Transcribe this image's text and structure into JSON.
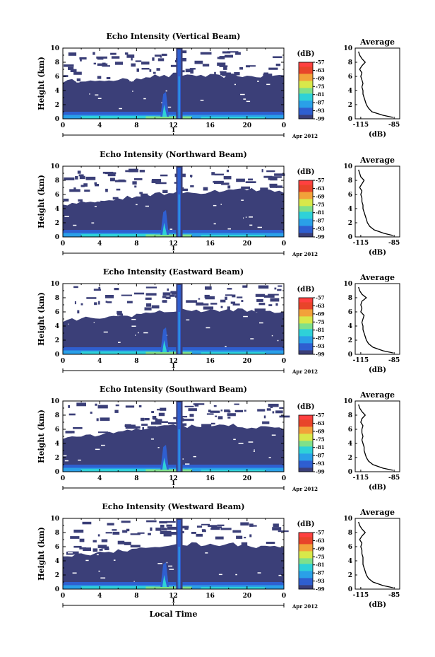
{
  "colors": {
    "background": "#ffffff",
    "no_echo": "#3b3f78",
    "colormap": [
      "#3b3f78",
      "#2f5fd0",
      "#2aa0e8",
      "#2ed1d8",
      "#7fe08a",
      "#d8e84a",
      "#f2a23a",
      "#e8452a",
      "#ff4040"
    ]
  },
  "chart_data": [
    {
      "type": "heatmap",
      "title": "Echo Intensity (Vertical Beam)",
      "ylabel": "Height (km)",
      "xlabel": "",
      "x_ticks": [
        "0",
        "4",
        "8",
        "12",
        "16",
        "20",
        "0"
      ],
      "y_ticks": [
        "0",
        "2",
        "4",
        "6",
        "8",
        "10"
      ],
      "xlim": [
        0,
        24
      ],
      "ylim": [
        0,
        10
      ],
      "date_tick": "1",
      "date_label": "Apr 2012",
      "colorbar": {
        "unit": "(dB)",
        "ticks": [
          "-57",
          "-63",
          "-69",
          "-75",
          "-81",
          "-87",
          "-93",
          "-99"
        ],
        "range": [
          -99,
          -57
        ]
      },
      "echo_top_km": [
        5.3,
        5.4,
        5.5,
        5.3,
        5.2,
        5.5,
        5.6,
        5.4,
        5.8,
        6.0,
        6.1,
        6.0,
        6.3,
        6.2,
        6.2,
        6.0,
        6.1,
        6.0,
        6.2,
        6.1,
        6.0,
        6.0,
        6.1,
        6.1
      ],
      "average": {
        "title": "Average",
        "xlabel": "(dB)",
        "x_ticks": [
          "-115",
          "-85"
        ],
        "xlim": [
          -120,
          -80
        ],
        "y_ticks": [
          "0",
          "2",
          "4",
          "6",
          "8",
          "10"
        ],
        "height_km": [
          0.2,
          0.5,
          1,
          1.5,
          2,
          2.5,
          3,
          3.5,
          4,
          4.5,
          5,
          5.5,
          6,
          6.5,
          7,
          7.5,
          8,
          8.5,
          9,
          9.5
        ],
        "db": [
          -86,
          -95,
          -105,
          -108,
          -110,
          -111,
          -112,
          -113,
          -113,
          -114,
          -113,
          -114,
          -115,
          -114,
          -116,
          -114,
          -111,
          -114,
          -116,
          -117
        ]
      }
    },
    {
      "type": "heatmap",
      "title": "Echo Intensity (Northward Beam)",
      "ylabel": "Height (km)",
      "xlabel": "",
      "x_ticks": [
        "0",
        "4",
        "8",
        "12",
        "16",
        "20",
        "0"
      ],
      "y_ticks": [
        "0",
        "2",
        "4",
        "6",
        "8",
        "10"
      ],
      "xlim": [
        0,
        24
      ],
      "ylim": [
        0,
        10
      ],
      "date_tick": "1",
      "date_label": "Apr 2012",
      "colorbar": {
        "unit": "(dB)",
        "ticks": [
          "-57",
          "-63",
          "-69",
          "-75",
          "-81",
          "-87",
          "-93",
          "-99"
        ],
        "range": [
          -99,
          -57
        ]
      },
      "echo_top_km": [
        4.6,
        4.8,
        5.0,
        5.1,
        5.0,
        5.3,
        5.4,
        5.6,
        5.8,
        6.0,
        6.2,
        6.1,
        6.3,
        6.4,
        6.3,
        6.2,
        6.4,
        6.3,
        6.6,
        6.8,
        6.7,
        6.4,
        6.6,
        6.3
      ],
      "average": {
        "title": "Average",
        "xlabel": "(dB)",
        "x_ticks": [
          "-115",
          "-85"
        ],
        "xlim": [
          -120,
          -80
        ],
        "y_ticks": [
          "0",
          "2",
          "4",
          "6",
          "8",
          "10"
        ],
        "height_km": [
          0.2,
          0.5,
          1,
          1.5,
          2,
          2.5,
          3,
          3.5,
          4,
          4.5,
          5,
          5.5,
          6,
          6.5,
          7,
          7.5,
          8,
          8.5,
          9,
          9.5
        ],
        "db": [
          -86,
          -94,
          -103,
          -107,
          -109,
          -110,
          -111,
          -112,
          -113,
          -113,
          -114,
          -114,
          -115,
          -114,
          -116,
          -114,
          -112,
          -115,
          -116,
          -117
        ]
      }
    },
    {
      "type": "heatmap",
      "title": "Echo Intensity (Eastward Beam)",
      "ylabel": "Height (km)",
      "xlabel": "",
      "x_ticks": [
        "0",
        "4",
        "8",
        "12",
        "16",
        "20",
        "0"
      ],
      "y_ticks": [
        "0",
        "2",
        "4",
        "6",
        "8",
        "10"
      ],
      "xlim": [
        0,
        24
      ],
      "ylim": [
        0,
        10
      ],
      "date_tick": "1",
      "date_label": "Apr 2012",
      "colorbar": {
        "unit": "(dB)",
        "ticks": [
          "-57",
          "-63",
          "-69",
          "-75",
          "-81",
          "-87",
          "-93",
          "-99"
        ],
        "range": [
          -99,
          -57
        ]
      },
      "echo_top_km": [
        4.7,
        4.9,
        5.1,
        5.0,
        5.2,
        5.3,
        5.4,
        5.5,
        5.7,
        5.8,
        6.0,
        6.1,
        6.1,
        6.2,
        6.3,
        6.1,
        6.2,
        6.1,
        6.3,
        6.3,
        6.1,
        6.0,
        6.2,
        6.0
      ],
      "average": {
        "title": "Average",
        "xlabel": "(dB)",
        "x_ticks": [
          "-115",
          "-85"
        ],
        "xlim": [
          -120,
          -80
        ],
        "y_ticks": [
          "0",
          "2",
          "4",
          "6",
          "8",
          "10"
        ],
        "height_km": [
          0.2,
          0.5,
          1,
          1.5,
          2,
          2.5,
          3,
          3.5,
          4,
          4.5,
          5,
          5.5,
          6,
          6.5,
          7,
          7.5,
          8,
          8.5,
          9,
          9.5
        ],
        "db": [
          -86,
          -95,
          -104,
          -108,
          -110,
          -111,
          -112,
          -113,
          -113,
          -114,
          -113,
          -112,
          -115,
          -114,
          -115,
          -114,
          -110,
          -114,
          -116,
          -117
        ]
      }
    },
    {
      "type": "heatmap",
      "title": "Echo Intensity (Southward Beam)",
      "ylabel": "Height (km)",
      "xlabel": "",
      "x_ticks": [
        "0",
        "4",
        "8",
        "12",
        "16",
        "20",
        "0"
      ],
      "y_ticks": [
        "0",
        "2",
        "4",
        "6",
        "8",
        "10"
      ],
      "xlim": [
        0,
        24
      ],
      "ylim": [
        0,
        10
      ],
      "date_tick": "1",
      "date_label": "Apr 2012",
      "colorbar": {
        "unit": "(dB)",
        "ticks": [
          "-57",
          "-63",
          "-69",
          "-75",
          "-81",
          "-87",
          "-93",
          "-99"
        ],
        "range": [
          -99,
          -57
        ]
      },
      "echo_top_km": [
        4.8,
        5.0,
        5.2,
        5.1,
        5.3,
        5.4,
        5.6,
        5.8,
        6.0,
        6.1,
        6.3,
        6.4,
        6.5,
        6.4,
        6.5,
        6.3,
        6.4,
        6.5,
        6.6,
        6.4,
        6.3,
        6.2,
        6.4,
        6.2
      ],
      "average": {
        "title": "Average",
        "xlabel": "(dB)",
        "x_ticks": [
          "-115",
          "-85"
        ],
        "xlim": [
          -120,
          -80
        ],
        "y_ticks": [
          "0",
          "2",
          "4",
          "6",
          "8",
          "10"
        ],
        "height_km": [
          0.2,
          0.5,
          1,
          1.5,
          2,
          2.5,
          3,
          3.5,
          4,
          4.5,
          5,
          5.5,
          6,
          6.5,
          7,
          7.5,
          8,
          8.5,
          9,
          9.5
        ],
        "db": [
          -86,
          -95,
          -104,
          -108,
          -110,
          -111,
          -112,
          -112,
          -113,
          -114,
          -113,
          -114,
          -114,
          -113,
          -115,
          -114,
          -111,
          -114,
          -116,
          -117
        ]
      }
    },
    {
      "type": "heatmap",
      "title": "Echo Intensity (Westward Beam)",
      "ylabel": "Height (km)",
      "xlabel": "Local Time",
      "x_ticks": [
        "0",
        "4",
        "8",
        "12",
        "16",
        "20",
        "0"
      ],
      "y_ticks": [
        "0",
        "2",
        "4",
        "6",
        "8",
        "10"
      ],
      "xlim": [
        0,
        24
      ],
      "ylim": [
        0,
        10
      ],
      "date_tick": "1",
      "date_label": "Apr 2012",
      "colorbar": {
        "unit": "(dB)",
        "ticks": [
          "-57",
          "-63",
          "-69",
          "-75",
          "-81",
          "-87",
          "-93",
          "-99"
        ],
        "range": [
          -99,
          -57
        ]
      },
      "echo_top_km": [
        4.6,
        4.8,
        5.0,
        5.0,
        5.1,
        5.3,
        5.4,
        5.5,
        5.7,
        5.9,
        6.1,
        6.2,
        6.2,
        6.3,
        6.4,
        6.2,
        6.3,
        6.2,
        6.4,
        6.3,
        6.1,
        6.0,
        6.1,
        6.0
      ],
      "average": {
        "title": "Average",
        "xlabel": "(dB)",
        "x_ticks": [
          "-115",
          "-85"
        ],
        "xlim": [
          -120,
          -80
        ],
        "y_ticks": [
          "0",
          "2",
          "4",
          "6",
          "8",
          "10"
        ],
        "height_km": [
          0.2,
          0.5,
          1,
          1.5,
          2,
          2.5,
          3,
          3.5,
          4,
          4.5,
          5,
          5.5,
          6,
          6.5,
          7,
          7.5,
          8,
          8.5,
          9,
          9.5
        ],
        "db": [
          -86,
          -95,
          -104,
          -108,
          -110,
          -111,
          -112,
          -113,
          -113,
          -113,
          -114,
          -114,
          -115,
          -114,
          -116,
          -114,
          -111,
          -114,
          -116,
          -117
        ]
      }
    }
  ]
}
